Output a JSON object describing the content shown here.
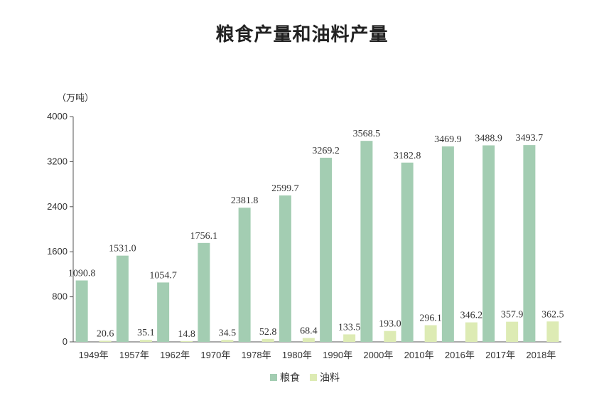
{
  "chart_data": {
    "type": "bar",
    "title": "粮食产量和油料产量",
    "unit_label": "（万吨）",
    "categories": [
      "1949年",
      "1957年",
      "1962年",
      "1970年",
      "1978年",
      "1980年",
      "1990年",
      "2000年",
      "2010年",
      "2016年",
      "2017年",
      "2018年"
    ],
    "series": [
      {
        "name": "粮食",
        "color": "#a3cdb2",
        "values": [
          1090.8,
          1531.0,
          1054.7,
          1756.1,
          2381.8,
          2599.7,
          3269.2,
          3568.5,
          3182.8,
          3469.9,
          3488.9,
          3493.7
        ],
        "labels": [
          "1090.8",
          "1531.0",
          "1054.7",
          "1756.1",
          "2381.8",
          "2599.7",
          "3269.2",
          "3568.5",
          "3182.8",
          "3469.9",
          "3488.9",
          "3493.7"
        ]
      },
      {
        "name": "油料",
        "color": "#ddebb4",
        "values": [
          20.6,
          35.1,
          14.8,
          34.5,
          52.8,
          68.4,
          133.5,
          193.0,
          296.1,
          346.2,
          357.9,
          362.5
        ],
        "labels": [
          "20.6",
          "35.1",
          "14.8",
          "34.5",
          "52.8",
          "68.4",
          "133.5",
          "193.0",
          "296.1",
          "346.2",
          "357.9",
          "362.5"
        ]
      }
    ],
    "yticks": [
      "0",
      "800",
      "1600",
      "2400",
      "3200",
      "4000"
    ],
    "ylim": [
      0,
      4000
    ],
    "grid": false,
    "legend_position": "bottom"
  }
}
